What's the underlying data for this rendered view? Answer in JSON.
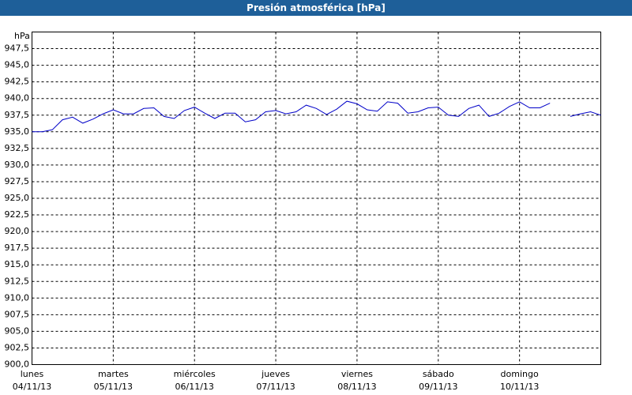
{
  "chart_data": {
    "type": "line",
    "title": "Presión atmosférica [hPa]",
    "y_unit": "hPa",
    "x": [
      0,
      0.125,
      0.25,
      0.375,
      0.5,
      0.625,
      0.75,
      0.875,
      1,
      1.125,
      1.25,
      1.375,
      1.5,
      1.625,
      1.75,
      1.875,
      2,
      2.125,
      2.25,
      2.375,
      2.5,
      2.625,
      2.75,
      2.875,
      3,
      3.125,
      3.25,
      3.375,
      3.5,
      3.625,
      3.75,
      3.875,
      4,
      4.125,
      4.25,
      4.375,
      4.5,
      4.625,
      4.75,
      4.875,
      5,
      5.125,
      5.25,
      5.375,
      5.5,
      5.625,
      5.75,
      5.875,
      6,
      6.125,
      6.25,
      6.375,
      6.5,
      6.625,
      6.75,
      6.875,
      7
    ],
    "series": [
      {
        "name": "Presión",
        "color": "#0000c8",
        "values": [
          935.0,
          935.0,
          935.3,
          936.8,
          937.2,
          936.3,
          936.9,
          937.7,
          938.3,
          937.7,
          937.7,
          938.5,
          938.6,
          937.3,
          937.0,
          938.2,
          938.7,
          937.8,
          937.0,
          937.8,
          937.8,
          936.5,
          936.8,
          938.0,
          938.2,
          937.7,
          938.0,
          939.0,
          938.5,
          937.6,
          938.4,
          939.6,
          939.2,
          938.3,
          938.1,
          939.5,
          939.3,
          937.8,
          938.0,
          938.6,
          938.7,
          937.5,
          937.3,
          938.5,
          939.0,
          937.3,
          937.8,
          938.8,
          939.5,
          938.6,
          938.6,
          939.3,
          null,
          937.3,
          937.7,
          938.0,
          937.5
        ]
      }
    ],
    "xlim": [
      0,
      7
    ],
    "xticks": [
      {
        "value": 0,
        "label": "lunes",
        "date": "04/11/13"
      },
      {
        "value": 1,
        "label": "martes",
        "date": "05/11/13"
      },
      {
        "value": 2,
        "label": "miércoles",
        "date": "06/11/13"
      },
      {
        "value": 3,
        "label": "jueves",
        "date": "07/11/13"
      },
      {
        "value": 4,
        "label": "viernes",
        "date": "08/11/13"
      },
      {
        "value": 5,
        "label": "sábado",
        "date": "09/11/13"
      },
      {
        "value": 6,
        "label": "domingo",
        "date": "10/11/13"
      }
    ],
    "ylim": [
      900,
      950
    ],
    "yticks": [
      {
        "value": 900,
        "label": "900,0"
      },
      {
        "value": 902.5,
        "label": "902,5"
      },
      {
        "value": 905,
        "label": "905,0"
      },
      {
        "value": 907.5,
        "label": "907,5"
      },
      {
        "value": 910,
        "label": "910,0"
      },
      {
        "value": 912.5,
        "label": "912,5"
      },
      {
        "value": 915,
        "label": "915,0"
      },
      {
        "value": 917.5,
        "label": "917,5"
      },
      {
        "value": 920,
        "label": "920,0"
      },
      {
        "value": 922.5,
        "label": "922,5"
      },
      {
        "value": 925,
        "label": "925,0"
      },
      {
        "value": 927.5,
        "label": "927,5"
      },
      {
        "value": 930,
        "label": "930,0"
      },
      {
        "value": 932.5,
        "label": "932,5"
      },
      {
        "value": 935,
        "label": "935,0"
      },
      {
        "value": 937.5,
        "label": "937,5"
      },
      {
        "value": 940,
        "label": "940,0"
      },
      {
        "value": 942.5,
        "label": "942,5"
      },
      {
        "value": 945,
        "label": "945,0"
      },
      {
        "value": 947.5,
        "label": "947,5"
      }
    ],
    "grid": true
  }
}
